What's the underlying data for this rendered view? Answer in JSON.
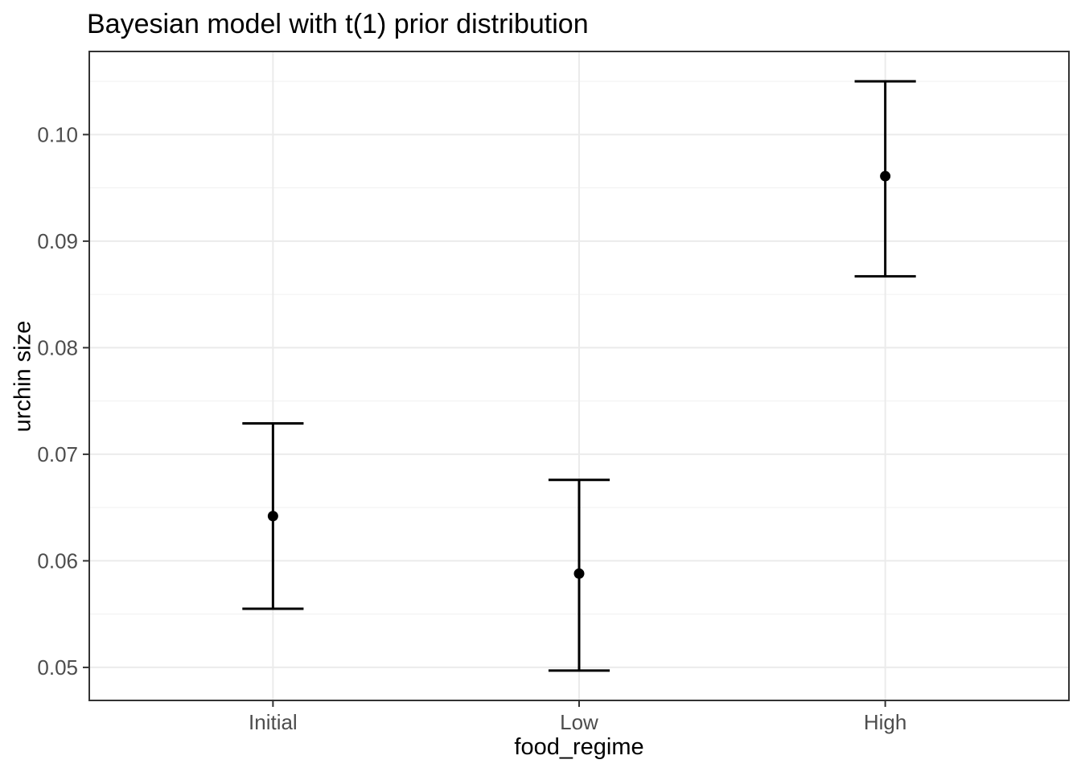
{
  "chart_data": {
    "type": "pointrange",
    "title": "Bayesian model with t(1) prior distribution",
    "xlabel": "food_regime",
    "ylabel": "urchin size",
    "categories": [
      "Initial",
      "Low",
      "High"
    ],
    "points": [
      {
        "category": "Initial",
        "mean": 0.0642,
        "lower": 0.0555,
        "upper": 0.0729
      },
      {
        "category": "Low",
        "mean": 0.0588,
        "lower": 0.0497,
        "upper": 0.0676
      },
      {
        "category": "High",
        "mean": 0.0961,
        "lower": 0.0867,
        "upper": 0.105
      }
    ],
    "ylim": [
      0.0469,
      0.1078
    ],
    "yticks": {
      "values": [
        0.05,
        0.06,
        0.07,
        0.08,
        0.09,
        0.1
      ],
      "labels": [
        "0.05",
        "0.06",
        "0.07",
        "0.08",
        "0.09",
        "0.10"
      ]
    },
    "grid": {
      "major": true,
      "minor": true
    },
    "legend": "none",
    "colors": {
      "background": "#ffffff",
      "panel_background": "#ffffff",
      "panel_border": "#333333",
      "grid_major": "#ebebeb",
      "grid_minor": "#f0f0f0",
      "axis_text": "#4d4d4d",
      "tick_mark": "#333333",
      "errorbar": "#000000",
      "point": "#000000",
      "title_text": "#000000"
    }
  }
}
